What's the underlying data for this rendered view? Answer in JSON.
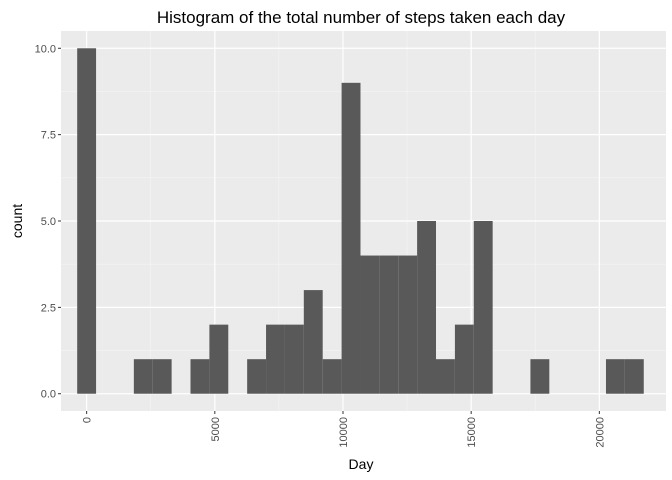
{
  "chart_data": {
    "type": "bar",
    "title": "Histogram of the total number of steps taken each day",
    "xlabel": "Day",
    "ylabel": "count",
    "xlim": [
      -1000,
      22600
    ],
    "ylim": [
      -0.5,
      10.5
    ],
    "binwidth": 736.7,
    "x_ticks": [
      0,
      5000,
      10000,
      15000,
      20000
    ],
    "x_tick_labels": [
      "0",
      "5000",
      "10000",
      "15000",
      "20000"
    ],
    "y_ticks": [
      0,
      2.5,
      5,
      7.5,
      10
    ],
    "y_tick_labels": [
      "0.0",
      "2.5",
      "5.0",
      "7.5",
      "10.0"
    ],
    "bins": [
      {
        "x": 0,
        "count": 10
      },
      {
        "x": 737,
        "count": 0
      },
      {
        "x": 1473,
        "count": 0
      },
      {
        "x": 2210,
        "count": 1
      },
      {
        "x": 2947,
        "count": 1
      },
      {
        "x": 3684,
        "count": 0
      },
      {
        "x": 4420,
        "count": 1
      },
      {
        "x": 5157,
        "count": 2
      },
      {
        "x": 5894,
        "count": 0
      },
      {
        "x": 6630,
        "count": 1
      },
      {
        "x": 7367,
        "count": 2
      },
      {
        "x": 8104,
        "count": 2
      },
      {
        "x": 8840,
        "count": 3
      },
      {
        "x": 9577,
        "count": 1
      },
      {
        "x": 10314,
        "count": 9
      },
      {
        "x": 11050,
        "count": 4
      },
      {
        "x": 11787,
        "count": 4
      },
      {
        "x": 12524,
        "count": 4
      },
      {
        "x": 13260,
        "count": 5
      },
      {
        "x": 13997,
        "count": 1
      },
      {
        "x": 14734,
        "count": 2
      },
      {
        "x": 15470,
        "count": 5
      },
      {
        "x": 16207,
        "count": 0
      },
      {
        "x": 16944,
        "count": 0
      },
      {
        "x": 17680,
        "count": 1
      },
      {
        "x": 18417,
        "count": 0
      },
      {
        "x": 19154,
        "count": 0
      },
      {
        "x": 19890,
        "count": 0
      },
      {
        "x": 20627,
        "count": 1
      },
      {
        "x": 21364,
        "count": 1
      }
    ],
    "grid": true,
    "colors": {
      "panel_background": "#ebebeb",
      "grid_major": "#ffffff",
      "grid_minor": "#f5f5f5",
      "bar_fill": "#595959",
      "tick_text": "#4d4d4d",
      "tick_mark": "#333333"
    }
  }
}
